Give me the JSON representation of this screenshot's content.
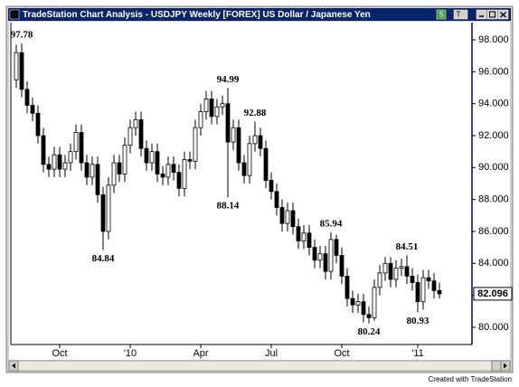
{
  "window": {
    "title": "TradeStation Chart Analysis - USDJPY Weekly [FOREX] US Dollar / Japanese Yen",
    "buttons": [
      "S",
      "T"
    ]
  },
  "chart_data": {
    "type": "candlestick",
    "categories": [
      null,
      null,
      null,
      null,
      null,
      null,
      null,
      null,
      "Oct",
      null,
      null,
      null,
      null,
      null,
      null,
      null,
      null,
      null,
      null,
      null,
      null,
      "'10",
      null,
      null,
      null,
      null,
      null,
      null,
      null,
      null,
      null,
      null,
      null,
      null,
      "Apr",
      null,
      null,
      null,
      null,
      null,
      null,
      null,
      null,
      null,
      null,
      null,
      null,
      "Jul",
      null,
      null,
      null,
      null,
      null,
      null,
      null,
      null,
      null,
      null,
      null,
      null,
      "Oct",
      null,
      null,
      null,
      null,
      null,
      null,
      null,
      null,
      null,
      null,
      null,
      null,
      null,
      "'11",
      null,
      null,
      null,
      null
    ],
    "open": [
      95.5,
      97.2,
      94.9,
      93.9,
      93.4,
      92.0,
      90.2,
      89.9,
      90.8,
      89.9,
      90.3,
      91.0,
      92.2,
      90.3,
      89.4,
      90.2,
      88.3,
      86.0,
      88.9,
      90.3,
      89.6,
      91.4,
      92.5,
      93.0,
      91.2,
      90.3,
      91.0,
      89.6,
      89.4,
      90.2,
      89.7,
      88.7,
      90.5,
      90.4,
      92.5,
      93.5,
      94.3,
      93.2,
      93.8,
      94.0,
      91.6,
      92.5,
      90.3,
      89.5,
      91.5,
      92.0,
      91.2,
      89.2,
      88.5,
      87.5,
      86.5,
      87.3,
      86.3,
      85.4,
      85.9,
      85.0,
      84.2,
      84.6,
      83.5,
      85.5,
      84.5,
      83.2,
      81.8,
      81.4,
      81.6,
      80.8,
      80.6,
      82.5,
      83.4,
      84.0,
      83.0,
      83.7,
      83.8,
      83.2,
      82.8,
      81.6,
      83.1,
      82.9,
      82.3
    ],
    "high": [
      97.7,
      97.78,
      95.4,
      94.4,
      93.9,
      92.5,
      90.7,
      91.3,
      91.3,
      90.8,
      91.5,
      92.7,
      92.7,
      90.8,
      90.7,
      90.7,
      88.8,
      89.4,
      90.8,
      90.8,
      91.9,
      93.0,
      93.5,
      93.5,
      91.7,
      91.5,
      91.5,
      90.1,
      90.7,
      90.7,
      90.2,
      91.0,
      91.0,
      93.0,
      94.0,
      94.8,
      94.8,
      94.3,
      94.5,
      94.99,
      93.0,
      93.0,
      90.8,
      92.0,
      92.88,
      92.5,
      91.7,
      89.7,
      89.0,
      88.0,
      87.8,
      87.8,
      86.8,
      86.4,
      86.4,
      85.5,
      85.1,
      85.1,
      85.94,
      85.8,
      85.0,
      83.7,
      82.3,
      82.1,
      82.1,
      81.3,
      83.0,
      83.9,
      84.4,
      84.4,
      84.2,
      84.3,
      84.51,
      83.7,
      83.3,
      83.6,
      83.6,
      83.4,
      82.8
    ],
    "low": [
      95.0,
      94.4,
      93.4,
      92.9,
      91.5,
      89.7,
      89.4,
      89.4,
      89.4,
      89.4,
      89.8,
      90.5,
      89.8,
      88.9,
      88.9,
      87.8,
      84.84,
      85.5,
      88.4,
      89.1,
      89.1,
      90.9,
      92.0,
      90.7,
      89.8,
      89.8,
      89.1,
      88.9,
      88.9,
      89.2,
      88.2,
      88.2,
      89.9,
      89.9,
      92.0,
      93.0,
      92.7,
      92.7,
      93.3,
      88.14,
      91.1,
      89.8,
      89.0,
      89.0,
      91.0,
      90.7,
      88.7,
      88.0,
      87.0,
      86.0,
      86.0,
      85.8,
      84.9,
      84.9,
      84.5,
      83.7,
      83.7,
      83.0,
      83.0,
      84.0,
      82.7,
      81.3,
      80.9,
      80.9,
      80.3,
      80.24,
      80.4,
      82.0,
      82.9,
      82.5,
      82.5,
      83.2,
      82.7,
      82.3,
      80.93,
      81.1,
      82.4,
      81.8,
      81.8
    ],
    "close": [
      97.2,
      94.9,
      93.9,
      93.4,
      92.0,
      90.2,
      89.9,
      90.8,
      89.9,
      90.3,
      91.0,
      92.2,
      90.3,
      89.4,
      90.2,
      88.3,
      86.0,
      88.9,
      90.3,
      89.6,
      91.4,
      92.5,
      93.0,
      91.2,
      90.3,
      91.0,
      89.6,
      89.4,
      90.2,
      89.7,
      88.7,
      90.5,
      90.4,
      92.5,
      93.5,
      94.3,
      93.2,
      93.8,
      94.0,
      91.6,
      92.5,
      90.3,
      89.5,
      91.5,
      92.0,
      91.2,
      89.2,
      88.5,
      87.5,
      86.5,
      87.3,
      86.3,
      85.4,
      85.9,
      85.0,
      84.2,
      84.6,
      83.5,
      85.5,
      84.5,
      83.2,
      81.8,
      81.4,
      81.6,
      80.8,
      80.6,
      82.5,
      83.4,
      84.0,
      83.0,
      83.7,
      83.8,
      83.2,
      82.8,
      81.6,
      83.1,
      82.9,
      82.3,
      82.096
    ],
    "up_color": "#ffffff",
    "down_color": "#000000",
    "ylim": [
      78.92,
      99.08
    ],
    "yticks": [
      {
        "value": 80,
        "label": "80.000"
      },
      {
        "value": 82,
        "label": "82.000"
      },
      {
        "value": 84,
        "label": "84.000"
      },
      {
        "value": 86,
        "label": "86.000"
      },
      {
        "value": 88,
        "label": "88.000"
      },
      {
        "value": 90,
        "label": "90.000"
      },
      {
        "value": 92,
        "label": "92.000"
      },
      {
        "value": 94,
        "label": "94.000"
      },
      {
        "value": 96,
        "label": "96.000"
      },
      {
        "value": 98,
        "label": "98.000"
      }
    ],
    "annotations": [
      "97.78",
      "84.84",
      "94.99",
      "88.14",
      "92.88",
      "85.94",
      "80.24",
      "84.51",
      "80.93"
    ]
  },
  "footer": "Created with TradeStation"
}
